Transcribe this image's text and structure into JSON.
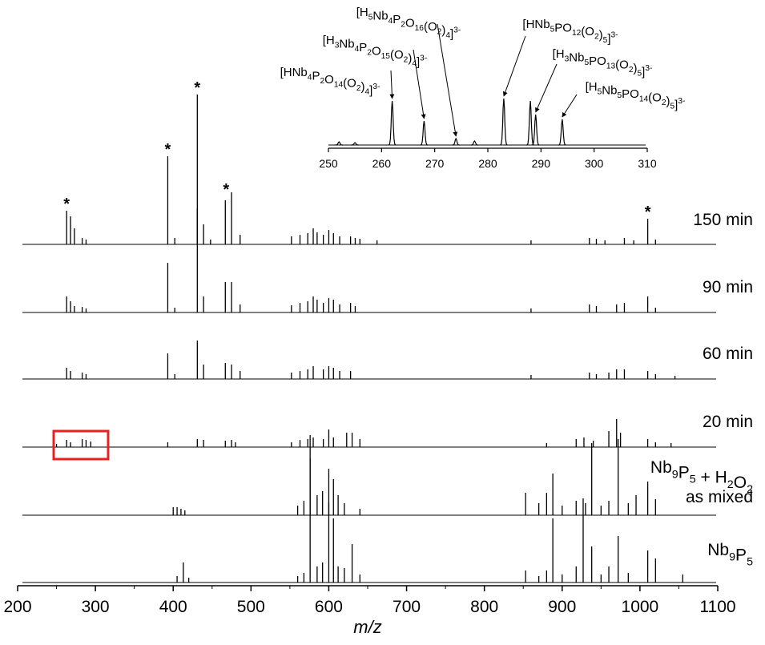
{
  "chart_data": {
    "type": "spectrum-stack",
    "xlabel": "m/z",
    "xlim": [
      200,
      1100
    ],
    "xticks": [
      200,
      300,
      400,
      500,
      600,
      700,
      800,
      900,
      1000,
      1100
    ],
    "color": "#000000",
    "highlight_color": "#e8201f",
    "series": [
      {
        "label": [
          "150 min"
        ],
        "x": [
          263,
          268,
          273,
          283,
          288,
          393,
          402,
          431,
          439,
          448,
          467,
          475,
          486,
          552,
          563,
          573,
          580,
          585,
          593,
          600,
          606,
          614,
          628,
          634,
          640,
          662,
          860,
          935,
          944,
          955,
          980,
          992,
          1010,
          1020
        ],
        "values": [
          42,
          35,
          20,
          8,
          6,
          110,
          8,
          187,
          25,
          6,
          55,
          65,
          12,
          10,
          12,
          14,
          20,
          15,
          12,
          18,
          14,
          10,
          10,
          8,
          7,
          5,
          5,
          8,
          7,
          5,
          8,
          5,
          32,
          6
        ],
        "markers": [
          {
            "label": "*",
            "x": 263
          },
          {
            "label": "*",
            "x": 393
          },
          {
            "label": "*",
            "x": 431
          },
          {
            "label": "*",
            "x": 468
          },
          {
            "label": "*",
            "x": 1010
          }
        ]
      },
      {
        "label": [
          "90 min"
        ],
        "x": [
          263,
          268,
          273,
          283,
          288,
          393,
          402,
          431,
          439,
          467,
          475,
          486,
          552,
          563,
          573,
          580,
          585,
          593,
          600,
          606,
          614,
          628,
          634,
          860,
          935,
          944,
          970,
          980,
          1010,
          1020
        ],
        "values": [
          20,
          14,
          8,
          7,
          5,
          62,
          6,
          130,
          20,
          38,
          38,
          10,
          9,
          12,
          14,
          20,
          16,
          12,
          18,
          16,
          10,
          12,
          8,
          5,
          10,
          8,
          10,
          12,
          20,
          6
        ]
      },
      {
        "label": [
          "60 min"
        ],
        "x": [
          263,
          268,
          283,
          288,
          393,
          402,
          431,
          439,
          467,
          475,
          486,
          552,
          563,
          573,
          580,
          593,
          600,
          606,
          614,
          628,
          860,
          935,
          944,
          960,
          970,
          980,
          1010,
          1020,
          1045
        ],
        "values": [
          14,
          10,
          8,
          6,
          32,
          6,
          48,
          18,
          20,
          18,
          10,
          8,
          10,
          12,
          16,
          12,
          16,
          14,
          10,
          10,
          5,
          8,
          6,
          8,
          12,
          12,
          10,
          6,
          4
        ]
      },
      {
        "label": [
          "20 min"
        ],
        "x": [
          250,
          263,
          268,
          283,
          288,
          294,
          393,
          431,
          439,
          467,
          475,
          480,
          552,
          563,
          573,
          580,
          593,
          600,
          606,
          623,
          630,
          640,
          880,
          918,
          928,
          940,
          960,
          970,
          975,
          1010,
          1020,
          1040
        ],
        "values": [
          4,
          9,
          6,
          10,
          9,
          7,
          6,
          10,
          9,
          8,
          9,
          6,
          6,
          9,
          10,
          12,
          10,
          22,
          12,
          18,
          18,
          10,
          5,
          10,
          12,
          8,
          20,
          35,
          18,
          10,
          6,
          5
        ]
      },
      {
        "label": [
          "Nb9P5 + H2O2",
          "as mixed"
        ],
        "x": [
          400,
          405,
          410,
          415,
          560,
          568,
          576,
          585,
          592,
          600,
          606,
          612,
          620,
          640,
          853,
          870,
          880,
          888,
          900,
          918,
          930,
          938,
          950,
          960,
          972,
          985,
          995,
          1010,
          1020
        ],
        "values": [
          10,
          10,
          8,
          6,
          12,
          18,
          100,
          25,
          30,
          58,
          45,
          25,
          15,
          8,
          28,
          15,
          28,
          52,
          12,
          18,
          15,
          90,
          12,
          18,
          95,
          15,
          25,
          42,
          20
        ]
      },
      {
        "label": [
          "Nb9P5"
        ],
        "x": [
          405,
          413,
          420,
          560,
          568,
          576,
          585,
          592,
          600,
          606,
          612,
          620,
          630,
          640,
          853,
          870,
          880,
          888,
          900,
          918,
          927,
          938,
          950,
          960,
          972,
          985,
          1010,
          1020,
          1055
        ],
        "values": [
          8,
          25,
          6,
          8,
          12,
          155,
          20,
          25,
          100,
          80,
          20,
          18,
          48,
          10,
          15,
          8,
          15,
          80,
          10,
          20,
          105,
          45,
          10,
          20,
          58,
          12,
          40,
          30,
          10
        ]
      }
    ],
    "inset": {
      "xlim": [
        250,
        310
      ],
      "xticks": [
        250,
        260,
        270,
        280,
        290,
        300,
        310
      ],
      "x": [
        252,
        255,
        262,
        268,
        274,
        277.5,
        283,
        288,
        289,
        294
      ],
      "values": [
        4,
        3,
        55,
        30,
        8,
        5,
        58,
        55,
        38,
        32
      ],
      "annotations": [
        {
          "label": "[HNb4P2O14(O2)4]3-",
          "x": 262
        },
        {
          "label": "[H3Nb4P2O15(O2)4]3-",
          "x": 268
        },
        {
          "label": "[H5Nb4P2O16(O2)4]3-",
          "x": 274
        },
        {
          "label": "[HNb5PO12(O2)5]3-",
          "x": 283
        },
        {
          "label": "[H3Nb5PO13(O2)5]3-",
          "x": 289
        },
        {
          "label": "[H5Nb5PO14(O2)5]3-",
          "x": 294
        }
      ]
    }
  }
}
